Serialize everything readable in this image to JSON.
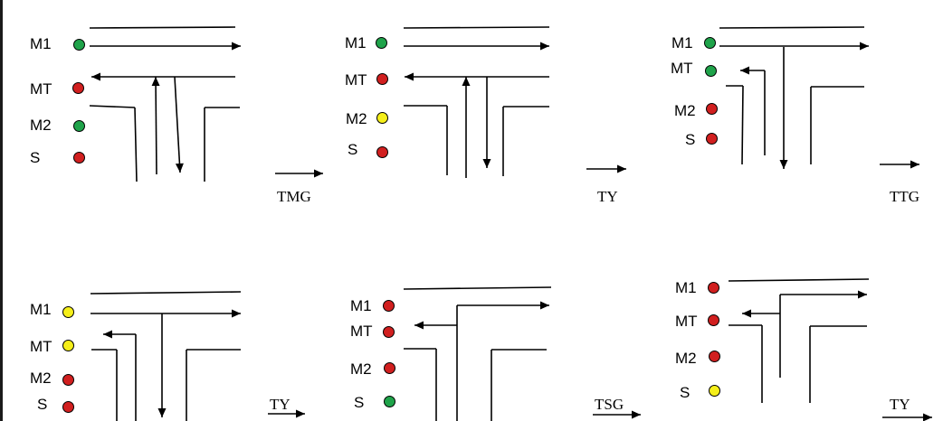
{
  "colors": {
    "green": "#1fa34a",
    "red": "#d11f1f",
    "yellow": "#f5ef1a"
  },
  "phases": [
    {
      "lights": [
        {
          "label": "M1",
          "state": "green"
        },
        {
          "label": "MT",
          "state": "red"
        },
        {
          "label": "M2",
          "state": "green"
        },
        {
          "label": "S",
          "state": "red"
        }
      ],
      "transition": "TMG"
    },
    {
      "lights": [
        {
          "label": "M1",
          "state": "green"
        },
        {
          "label": "MT",
          "state": "red"
        },
        {
          "label": "M2",
          "state": "yellow"
        },
        {
          "label": "S",
          "state": "red"
        }
      ],
      "transition": "TY"
    },
    {
      "lights": [
        {
          "label": "M1",
          "state": "green"
        },
        {
          "label": "MT",
          "state": "green"
        },
        {
          "label": "M2",
          "state": "red"
        },
        {
          "label": "S",
          "state": "red"
        }
      ],
      "transition": "TTG"
    },
    {
      "lights": [
        {
          "label": "M1",
          "state": "yellow"
        },
        {
          "label": "MT",
          "state": "yellow"
        },
        {
          "label": "M2",
          "state": "red"
        },
        {
          "label": "S",
          "state": "red"
        }
      ],
      "transition": "TY"
    },
    {
      "lights": [
        {
          "label": "M1",
          "state": "red"
        },
        {
          "label": "MT",
          "state": "red"
        },
        {
          "label": "M2",
          "state": "red"
        },
        {
          "label": "S",
          "state": "green"
        }
      ],
      "transition": "TSG"
    },
    {
      "lights": [
        {
          "label": "M1",
          "state": "red"
        },
        {
          "label": "MT",
          "state": "red"
        },
        {
          "label": "M2",
          "state": "red"
        },
        {
          "label": "S",
          "state": "yellow"
        }
      ],
      "transition": "TY"
    }
  ]
}
